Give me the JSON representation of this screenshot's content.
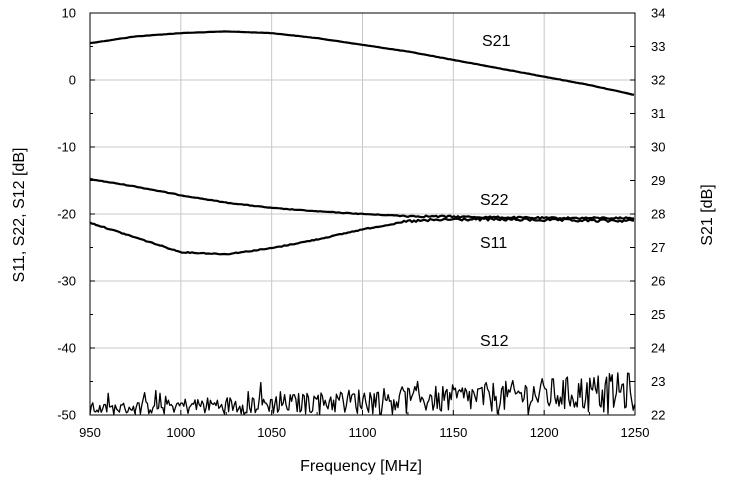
{
  "chart_data": {
    "type": "line",
    "xlabel": "Frequency [MHz]",
    "ylabel_left": "S11, S22, S12 [dB]",
    "ylabel_right": "S21 [dB]",
    "xlim": [
      950,
      1250
    ],
    "ylim_left": [
      -50,
      10
    ],
    "ylim_right": [
      22,
      34
    ],
    "grid": true,
    "x_ticks": [
      950,
      1000,
      1050,
      1100,
      1150,
      1200,
      1250
    ],
    "y_ticks_left": [
      10,
      0,
      -10,
      -20,
      -30,
      -40,
      -50
    ],
    "y_ticks_right": [
      34,
      33,
      32,
      31,
      30,
      29,
      28,
      27,
      26,
      25,
      24,
      23,
      22
    ],
    "series": [
      {
        "name": "S21",
        "axis": "right",
        "noisy": false,
        "x": [
          950,
          975,
          1000,
          1025,
          1050,
          1075,
          1100,
          1125,
          1150,
          1175,
          1200,
          1225,
          1250
        ],
        "y": [
          33.1,
          33.3,
          33.4,
          33.45,
          33.4,
          33.25,
          33.05,
          32.85,
          32.6,
          32.35,
          32.1,
          31.85,
          31.55
        ]
      },
      {
        "name": "S22",
        "axis": "left",
        "noisy": false,
        "x": [
          950,
          975,
          1000,
          1025,
          1050,
          1075,
          1100,
          1125,
          1150,
          1175,
          1200,
          1225,
          1250
        ],
        "y": [
          -14.8,
          -15.9,
          -17.2,
          -18.3,
          -19.1,
          -19.6,
          -20.0,
          -20.3,
          -20.4,
          -20.5,
          -20.6,
          -20.6,
          -20.6
        ]
      },
      {
        "name": "S11",
        "axis": "left",
        "noisy": false,
        "x": [
          950,
          975,
          1000,
          1025,
          1050,
          1075,
          1100,
          1125,
          1150,
          1175,
          1200,
          1225,
          1250
        ],
        "y": [
          -21.3,
          -23.5,
          -25.7,
          -26.0,
          -25.1,
          -23.8,
          -22.3,
          -21.1,
          -20.8,
          -20.8,
          -20.9,
          -21.0,
          -21.0
        ]
      },
      {
        "name": "S12",
        "axis": "left",
        "noisy": true,
        "x": [
          950,
          1000,
          1050,
          1100,
          1150,
          1200,
          1250
        ],
        "y_top": [
          -48.5,
          -47.5,
          -47.0,
          -46.0,
          -45.5,
          -44.5,
          -43.5
        ],
        "y_bottom": [
          -50,
          -50,
          -50,
          -50,
          -50,
          -50,
          -50
        ]
      }
    ]
  }
}
